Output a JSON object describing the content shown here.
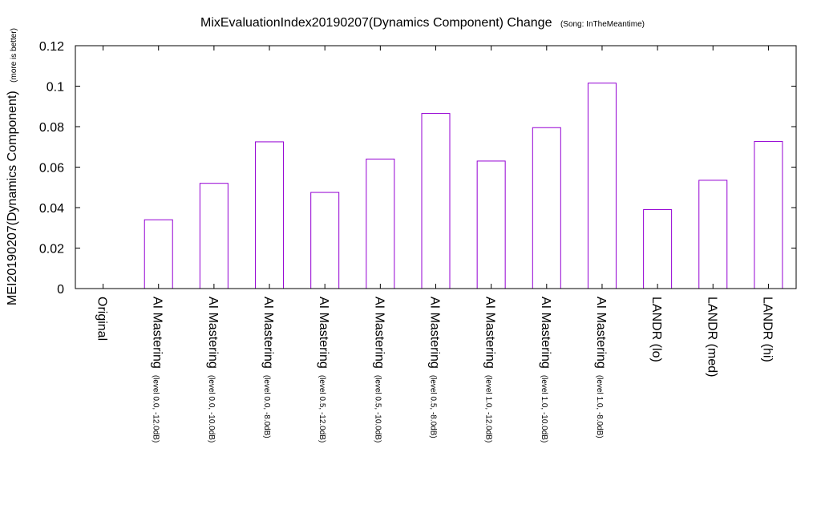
{
  "chart_data": {
    "type": "bar",
    "title": "MixEvaluationIndex20190207(Dynamics Component) Change",
    "subtitle": "(Song: InTheMeantime)",
    "ylabel": "MEI20190207(Dynamics Component)",
    "ylabel_note": "(more is better)",
    "xlabel": "",
    "ylim": [
      0,
      0.12
    ],
    "yticks": [
      "0",
      "0.02",
      "0.04",
      "0.06",
      "0.08",
      "0.1",
      "0.12"
    ],
    "bar_color": "#9400d3",
    "legend": "none",
    "grid": false,
    "categories": [
      {
        "main": "Original",
        "sub": ""
      },
      {
        "main": "AI Mastering",
        "sub": "(level 0.0, -12.0dB)"
      },
      {
        "main": "AI Mastering",
        "sub": "(level 0.0, -10.0dB)"
      },
      {
        "main": "AI Mastering",
        "sub": "(level 0.0, -8.0dB)"
      },
      {
        "main": "AI Mastering",
        "sub": "(level 0.5, -12.0dB)"
      },
      {
        "main": "AI Mastering",
        "sub": "(level 0.5, -10.0dB)"
      },
      {
        "main": "AI Mastering",
        "sub": "(level 0.5, -8.0dB)"
      },
      {
        "main": "AI Mastering",
        "sub": "(level 1.0, -12.0dB)"
      },
      {
        "main": "AI Mastering",
        "sub": "(level 1.0, -10.0dB)"
      },
      {
        "main": "AI Mastering",
        "sub": "(level 1.0, -8.0dB)"
      },
      {
        "main": "LANDR (lo)",
        "sub": ""
      },
      {
        "main": "LANDR (med)",
        "sub": ""
      },
      {
        "main": "LANDR (hi)",
        "sub": ""
      }
    ],
    "values": [
      0,
      0.034,
      0.052,
      0.0725,
      0.0475,
      0.064,
      0.0865,
      0.063,
      0.0795,
      0.1015,
      0.039,
      0.0535,
      0.0727
    ]
  }
}
